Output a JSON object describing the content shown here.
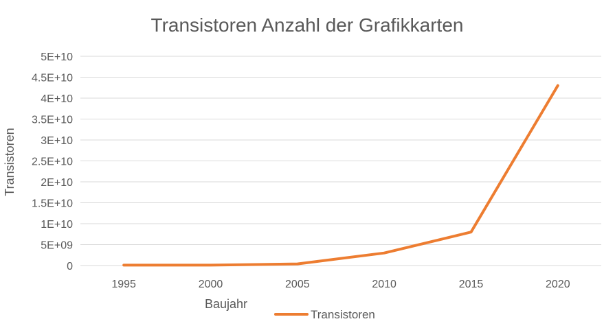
{
  "chart_data": {
    "type": "line",
    "title": "Transistoren Anzahl der Grafikkarten",
    "xlabel": "Baujahr",
    "ylabel": "Transistoren",
    "categories": [
      "1995",
      "2000",
      "2005",
      "2010",
      "2015",
      "2020"
    ],
    "y_tick_labels": [
      "0",
      "5E+09",
      "1E+10",
      "1.5E+10",
      "2E+10",
      "2.5E+10",
      "3E+10",
      "3.5E+10",
      "4E+10",
      "4.5E+10",
      "5E+10"
    ],
    "ylim": [
      0,
      50000000000
    ],
    "grid": true,
    "legend_position": "bottom",
    "series": [
      {
        "name": "Transistoren",
        "color": "#ed7d31",
        "values": [
          100000000,
          100000000,
          400000000,
          3000000000,
          8000000000,
          43000000000
        ]
      }
    ]
  }
}
